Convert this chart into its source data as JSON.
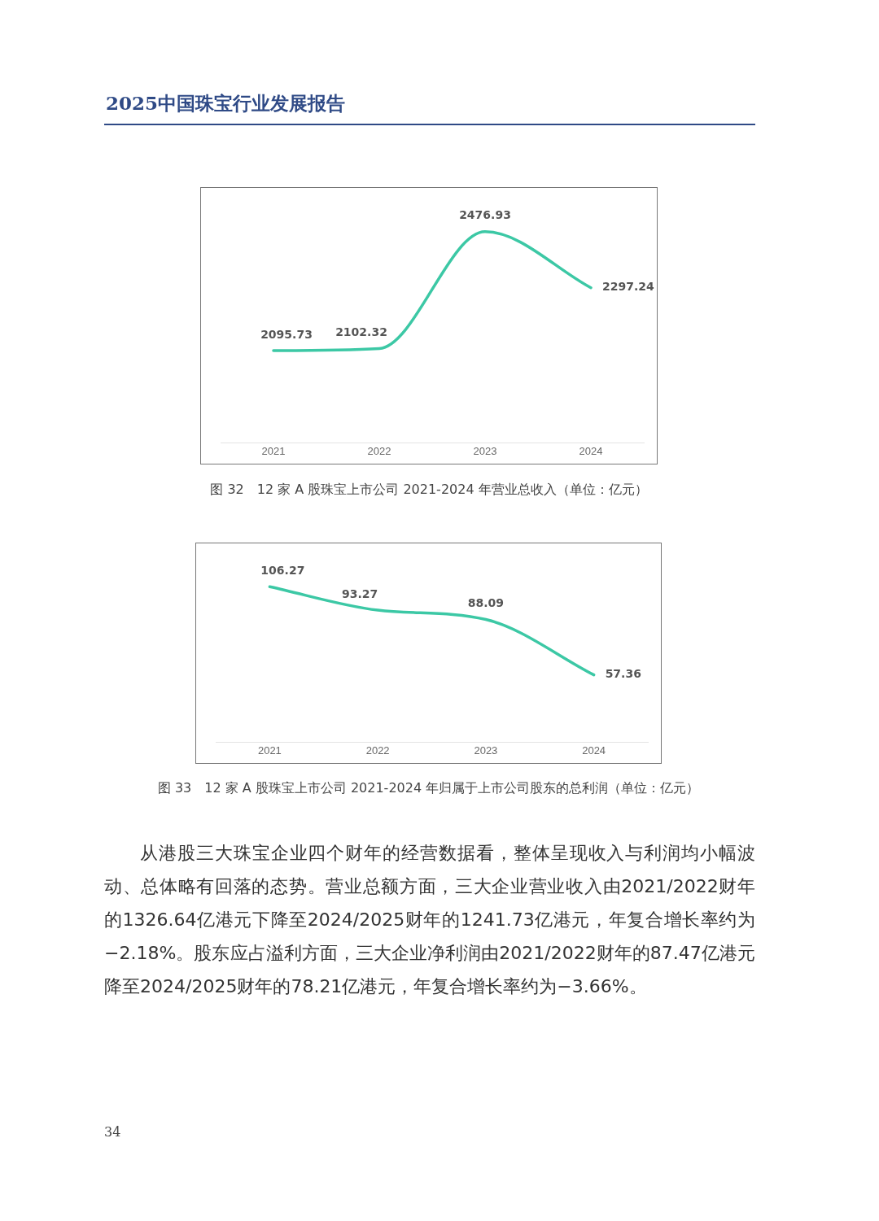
{
  "chart_data": [
    {
      "type": "line",
      "title": "图 32　12 家 A 股珠宝上市公司 2021-2024 年营业总收入（单位：亿元）",
      "annotations": [
        "2025中国珠宝行业发展报告"
      ],
      "categories": [
        "2021",
        "2022",
        "2023",
        "2024"
      ],
      "series": [
        {
          "color": "#3cc8a5",
          "values": [
            2095.73,
            2102.32,
            2476.93,
            2297.24
          ]
        }
      ],
      "tick_labels": "x",
      "data_labels": true,
      "grid": false,
      "legend": false,
      "marker": "none",
      "line_style": "solid"
    },
    {
      "type": "line",
      "title": "图 33　12 家 A 股珠宝上市公司 2021-2024 年归属于上市公司股东的总利润（单位：亿元）",
      "annotations": [
        "从港股三大珠宝企业四个财年的经营数据看，整体呈现收入与利润均小幅波动、总体略有回落的态势。营业总额方面，三大企业营业收入由2021/2022财年的1326.64亿港元下降至2024/2025财年的1241.73亿港元，年复合增长率约为−2.18%。股东应占溢利方面，三大企业净利润由2021/2022财年的87.47亿港元降至2024/2025财年的78.21亿港元，年复合增长率约为−3.66%。",
        "34"
      ],
      "categories": [
        "2021",
        "2022",
        "2023",
        "2024"
      ],
      "series": [
        {
          "color": "#3cc8a5",
          "values": [
            106.27,
            93.27,
            88.09,
            57.36
          ]
        }
      ],
      "tick_labels": "x",
      "data_labels": true,
      "grid": false,
      "legend": false,
      "marker": "none",
      "line_style": "solid"
    }
  ]
}
